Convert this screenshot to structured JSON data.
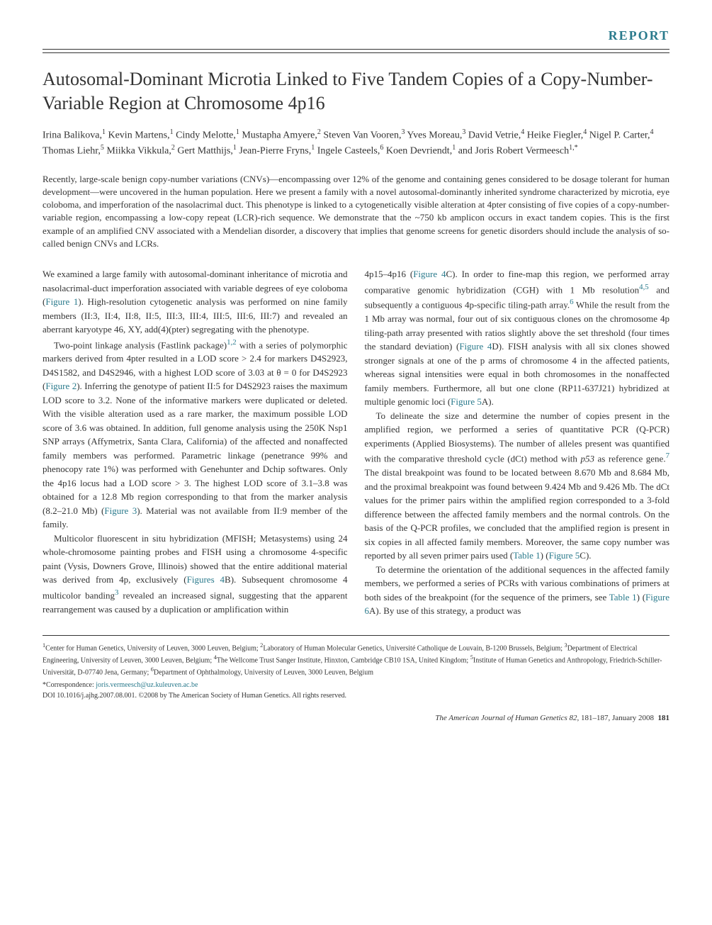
{
  "report_label": "REPORT",
  "title": "Autosomal-Dominant Microtia Linked to Five Tandem Copies of a Copy-Number-Variable Region at Chromosome 4p16",
  "authors_html": "Irina Balikova,<sup>1</sup> Kevin Martens,<sup>1</sup> Cindy Melotte,<sup>1</sup> Mustapha Amyere,<sup>2</sup> Steven Van Vooren,<sup>3</sup> Yves Moreau,<sup>3</sup> David Vetrie,<sup>4</sup> Heike Fiegler,<sup>4</sup> Nigel P. Carter,<sup>4</sup> Thomas Liehr,<sup>5</sup> Miikka Vikkula,<sup>2</sup> Gert Matthijs,<sup>1</sup> Jean-Pierre Fryns,<sup>1</sup> Ingele Casteels,<sup>6</sup> Koen Devriendt,<sup>1</sup> and Joris Robert Vermeesch<sup>1,*</sup>",
  "abstract": "Recently, large-scale benign copy-number variations (CNVs)—encompassing over 12% of the genome and containing genes considered to be dosage tolerant for human development—were uncovered in the human population. Here we present a family with a novel autosomal-dominantly inherited syndrome characterized by microtia, eye coloboma, and imperforation of the nasolacrimal duct. This phenotype is linked to a cytogenetically visible alteration at 4pter consisting of five copies of a copy-number-variable region, encompassing a low-copy repeat (LCR)-rich sequence. We demonstrate that the ~750 kb amplicon occurs in exact tandem copies. This is the first example of an amplified CNV associated with a Mendelian disorder, a discovery that implies that genome screens for genetic disorders should include the analysis of so-called benign CNVs and LCRs.",
  "col_left": {
    "p1": "We examined a large family with autosomal-dominant inheritance of microtia and nasolacrimal-duct imperforation associated with variable degrees of eye coloboma (",
    "p1_link": "Figure 1",
    "p1_end": "). High-resolution cytogenetic analysis was performed on nine family members (II:3, II:4, II:8, II:5, III:3, III:4, III:5, III:6, III:7) and revealed an aberrant karyotype 46, XY, add(4)(pter) segregating with the phenotype.",
    "p2": "Two-point linkage analysis (Fastlink package)",
    "p2_sup": "1,2",
    "p2_cont": " with a series of polymorphic markers derived from 4pter resulted in a LOD score > 2.4 for markers D4S2923, D4S1582, and D4S2946, with a highest LOD score of 3.03 at θ = 0 for D4S2923 (",
    "p2_link": "Figure 2",
    "p2_end": "). Inferring the genotype of patient II:5 for D4S2923 raises the maximum LOD score to 3.2. None of the informative markers were duplicated or deleted. With the visible alteration used as a rare marker, the maximum possible LOD score of 3.6 was obtained. In addition, full genome analysis using the 250K Nsp1 SNP arrays (Affymetrix, Santa Clara, California) of the affected and nonaffected family members was performed. Parametric linkage (penetrance 99% and phenocopy rate 1%) was performed with Genehunter and Dchip softwares. Only the 4p16 locus had a LOD score > 3. The highest LOD score of 3.1–3.8 was obtained for a 12.8 Mb region corresponding to that from the marker analysis (8.2–21.0 Mb) (",
    "p2_link2": "Figure 3",
    "p2_end2": "). Material was not available from II:9 member of the family.",
    "p3": "Multicolor fluorescent in situ hybridization (MFISH; Metasystems) using 24 whole-chromosome painting probes and FISH using a chromosome 4-specific paint (Vysis, Downers Grove, Illinois) showed that the entire additional material was derived from 4p, exclusively (",
    "p3_link": "Figures 4",
    "p3_cont": "B). Subsequent chromosome 4 multicolor banding",
    "p3_sup": "3",
    "p3_end": " revealed an increased signal, suggesting that the apparent rearrangement was caused by a duplication or amplification within"
  },
  "col_right": {
    "p1": "4p15–4p16 (",
    "p1_link": "Figure 4",
    "p1_cont": "C). In order to fine-map this region, we performed array comparative genomic hybridization (CGH) with 1 Mb resolution",
    "p1_sup": "4,5",
    "p1_cont2": " and subsequently a contiguous 4p-specific tiling-path array.",
    "p1_sup2": "6",
    "p1_cont3": " While the result from the 1 Mb array was normal, four out of six contiguous clones on the chromosome 4p tiling-path array presented with ratios slightly above the set threshold (four times the standard deviation) (",
    "p1_link2": "Figure 4",
    "p1_cont4": "D). FISH analysis with all six clones showed stronger signals at one of the p arms of chromosome 4 in the affected patients, whereas signal intensities were equal in both chromosomes in the nonaffected family members. Furthermore, all but one clone (RP11-637J21) hybridized at multiple genomic loci (",
    "p1_link3": "Figure 5",
    "p1_end": "A).",
    "p2": "To delineate the size and determine the number of copies present in the amplified region, we performed a series of quantitative PCR (Q-PCR) experiments (Applied Biosystems). The number of alleles present was quantified with the comparative threshold cycle (dCt) method with ",
    "p2_ital": "p53",
    "p2_cont": " as reference gene.",
    "p2_sup": "7",
    "p2_cont2": " The distal breakpoint was found to be located between 8.670 Mb and 8.684 Mb, and the proximal breakpoint was found between 9.424 Mb and 9.426 Mb. The dCt values for the primer pairs within the amplified region corresponded to a 3-fold difference between the affected family members and the normal controls. On the basis of the Q-PCR profiles, we concluded that the amplified region is present in six copies in all affected family members. Moreover, the same copy number was reported by all seven primer pairs used (",
    "p2_link": "Table 1",
    "p2_cont3": ") (",
    "p2_link2": "Figure 5",
    "p2_end": "C).",
    "p3": "To determine the orientation of the additional sequences in the affected family members, we performed a series of PCRs with various combinations of primers at both sides of the breakpoint (for the sequence of the primers, see ",
    "p3_link": "Table 1",
    "p3_cont": ") (",
    "p3_link2": "Figure 6",
    "p3_end": "A). By use of this strategy, a product was"
  },
  "affiliations": "<sup>1</sup>Center for Human Genetics, University of Leuven, 3000 Leuven, Belgium; <sup>2</sup>Laboratory of Human Molecular Genetics, Université Catholique de Louvain, B-1200 Brussels, Belgium; <sup>3</sup>Department of Electrical Engineering, University of Leuven, 3000 Leuven, Belgium; <sup>4</sup>The Wellcome Trust Sanger Institute, Hinxton, Cambridge CB10 1SA, United Kingdom; <sup>5</sup>Institute of Human Genetics and Anthropology, Friedrich-Schiller-Universität, D-07740 Jena, Germany; <sup>6</sup>Department of Ophthalmology, University of Leuven, 3000 Leuven, Belgium",
  "correspondence_label": "*Correspondence: ",
  "correspondence_email": "joris.vermeesch@uz.kuleuven.ac.be",
  "doi": "DOI 10.1016/j.ajhg.2007.08.001. ©2008 by The American Society of Human Genetics. All rights reserved.",
  "footer_journal": "The American Journal of Human Genetics ",
  "footer_vol": "82",
  "footer_pages": ", 181–187, January 2008",
  "footer_pagenum": "181"
}
